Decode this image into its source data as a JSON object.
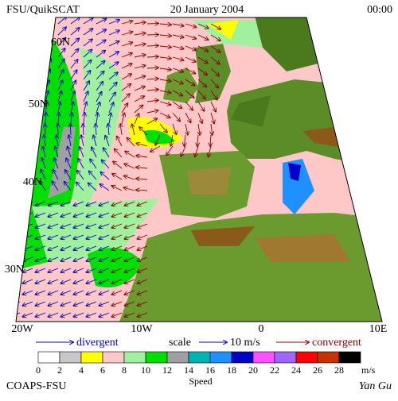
{
  "header": {
    "left": "FSU/QuikSCAT",
    "center": "20 January 2004",
    "right": "00:00"
  },
  "map": {
    "lat_labels": [
      "60N",
      "50N",
      "40N",
      "30N"
    ],
    "lon_labels": [
      "20W",
      "10W",
      "0",
      "10E"
    ]
  },
  "legend": {
    "divergent": "divergent",
    "scale": "scale",
    "scale_value": "10 m/s",
    "convergent": "convergent"
  },
  "colorbar": {
    "labels": [
      0,
      2,
      4,
      6,
      8,
      10,
      12,
      14,
      16,
      18,
      20,
      22,
      24,
      26,
      28
    ],
    "unit": "m/s",
    "title": "Speed",
    "colors": [
      "#ffffff",
      "#c8c8c8",
      "#ffff00",
      "#ffc8c8",
      "#a0f0a0",
      "#00e000",
      "#a0a0a0",
      "#00b4b4",
      "#1e90ff",
      "#0000c8",
      "#ff50ff",
      "#a064ff",
      "#ff0000",
      "#c83200",
      "#000000"
    ]
  },
  "footer": {
    "left": "COAPS-FSU",
    "right": "Yan Gu"
  }
}
